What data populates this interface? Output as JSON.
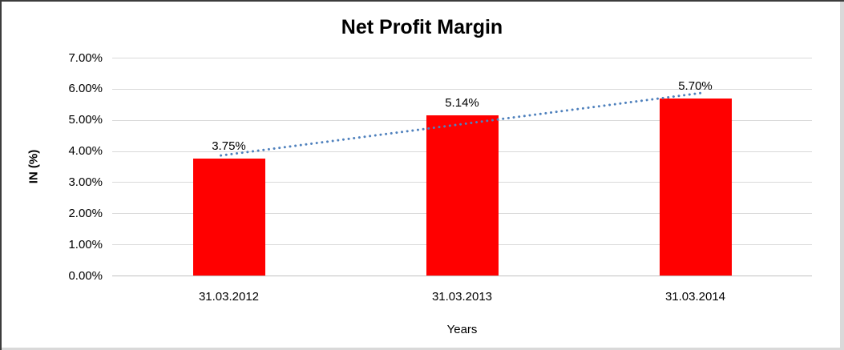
{
  "chart_data": {
    "type": "bar",
    "title": "Net Profit Margin",
    "xlabel": "Years",
    "ylabel": "IN (%)",
    "categories": [
      "31.03.2012",
      "31.03.2013",
      "31.03.2014"
    ],
    "values": [
      3.75,
      5.14,
      5.7
    ],
    "data_labels": [
      "3.75%",
      "5.14%",
      "5.70%"
    ],
    "ytick_labels": [
      "0.00%",
      "1.00%",
      "2.00%",
      "3.00%",
      "4.00%",
      "5.00%",
      "6.00%",
      "7.00%"
    ],
    "ylim": [
      0,
      7
    ],
    "ytick_step": 1,
    "grid": true,
    "legend": "none",
    "bar_color": "#FF0000",
    "gridline_color": "#D9D9D9",
    "axis_line_color": "#C0C0C0",
    "text_color": "#000000",
    "trendline": {
      "type": "linear",
      "style": "dotted",
      "color": "#4F81BD",
      "endpoints_pct": [
        3.89,
        5.84
      ]
    }
  }
}
